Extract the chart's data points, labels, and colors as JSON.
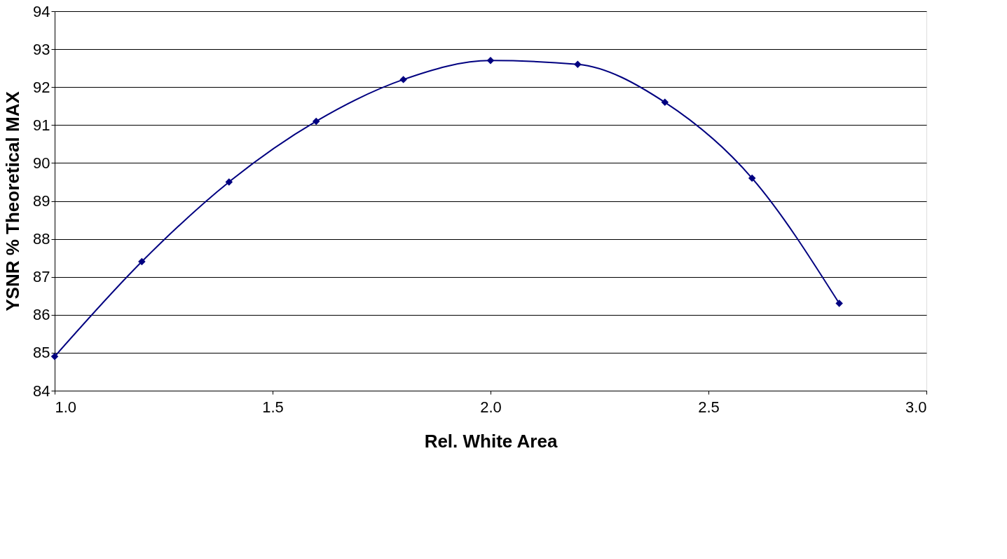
{
  "chart_data": {
    "type": "line",
    "xlabel": "Rel. White Area",
    "ylabel": "YSNR % Theoretical MAX",
    "x": [
      1.0,
      1.2,
      1.4,
      1.6,
      1.8,
      2.0,
      2.2,
      2.4,
      2.6,
      2.8
    ],
    "series": [
      {
        "color": "#000080",
        "values": [
          84.9,
          87.4,
          89.5,
          91.1,
          92.2,
          92.7,
          92.6,
          91.6,
          89.6,
          86.3
        ]
      }
    ],
    "xlim": [
      1.0,
      3.0
    ],
    "xticks": [
      {
        "value": 1.0,
        "label": "1.0"
      },
      {
        "value": 1.5,
        "label": "1.5"
      },
      {
        "value": 2.0,
        "label": "2.0"
      },
      {
        "value": 2.5,
        "label": "2.5"
      },
      {
        "value": 3.0,
        "label": "3.0"
      }
    ],
    "ylim": [
      84,
      94
    ],
    "yticks": [
      84,
      85,
      86,
      87,
      88,
      89,
      90,
      91,
      92,
      93,
      94
    ],
    "grid": "y",
    "marker": "diamond",
    "line_style": "solid"
  }
}
